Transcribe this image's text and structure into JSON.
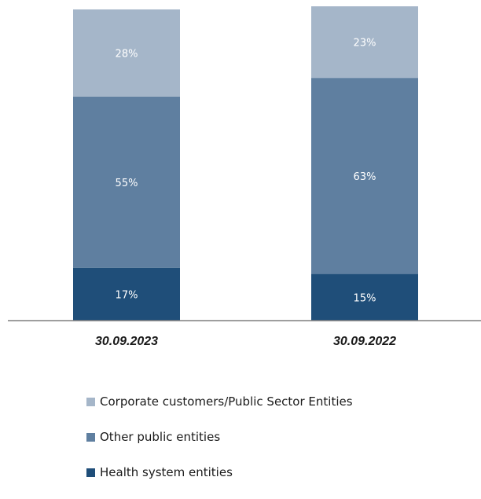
{
  "chart_data": {
    "type": "bar",
    "stacked": true,
    "normalized": true,
    "categories": [
      "30.09.2023",
      "30.09.2022"
    ],
    "series": [
      {
        "name": "Health system entities",
        "values": [
          17,
          15
        ],
        "labels": [
          "17%",
          "15%"
        ],
        "color": "#1f4e79"
      },
      {
        "name": "Other public entities",
        "values": [
          55,
          63
        ],
        "labels": [
          "55%",
          "63%"
        ],
        "color": "#5f7fa0"
      },
      {
        "name": "Corporate customers/Public Sector Entities",
        "values": [
          28,
          23
        ],
        "labels": [
          "28%",
          "23%"
        ],
        "color": "#a5b6c9"
      }
    ],
    "legend_order": [
      "Corporate customers/Public Sector Entities",
      "Other public entities",
      "Health system entities"
    ],
    "ylim": [
      0,
      100
    ],
    "grid": false,
    "legend_position": "bottom-left",
    "axis_color": "#7f7f7f"
  }
}
